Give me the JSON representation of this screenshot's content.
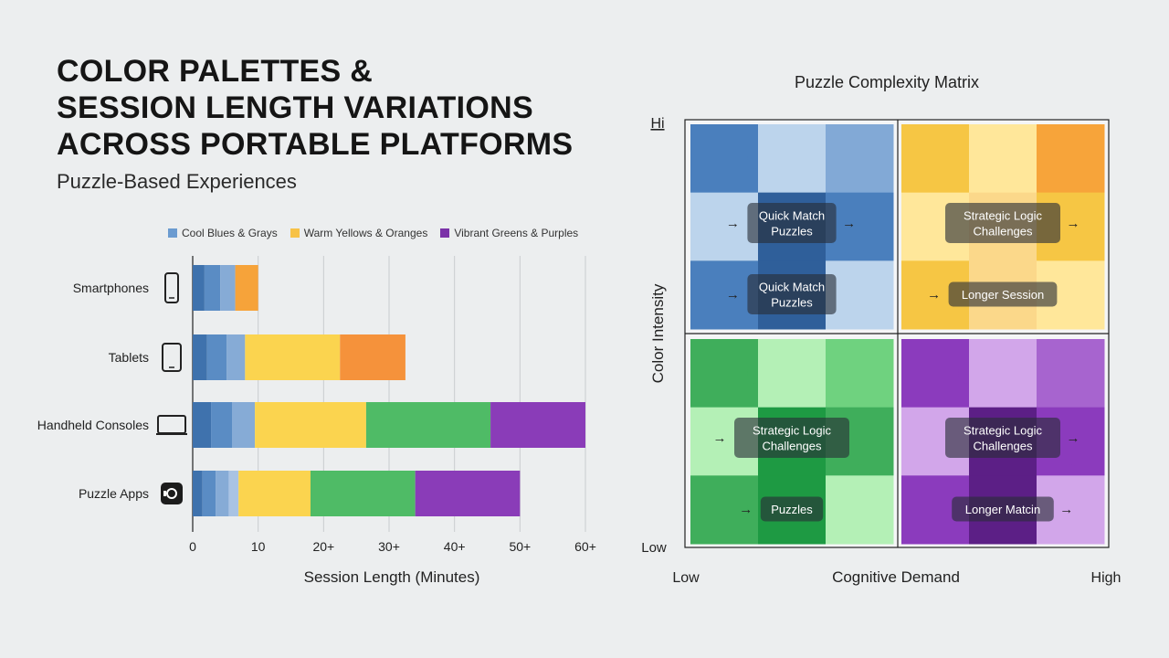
{
  "title_lines": [
    "COLOR PALETTES &",
    "SESSION LENGTH VARIATIONS",
    "ACROSS PORTABLE PLATFORMS"
  ],
  "subtitle": "Puzzle-Based Experiences",
  "legend": [
    {
      "label": "Cool Blues & Grays",
      "color": "#6b9bd0"
    },
    {
      "label": "Warm Yellows & Oranges",
      "color": "#f7c247"
    },
    {
      "label": "Vibrant Greens & Purples",
      "color": "#7b32a8"
    }
  ],
  "chart_data": [
    {
      "type": "bar",
      "orientation": "horizontal",
      "stacked": true,
      "xlabel": "Session Length (Minutes)",
      "xlim": [
        0,
        60
      ],
      "xticks": [
        "0",
        "10",
        "20+",
        "30+",
        "40+",
        "50+",
        "60+"
      ],
      "grid": true,
      "legend_position": "top",
      "categories": [
        {
          "label": "Smartphones",
          "icon": "smartphone-icon"
        },
        {
          "label": "Tablets",
          "icon": "tablet-icon"
        },
        {
          "label": "Handheld Consoles",
          "icon": "handheld-console-icon"
        },
        {
          "label": "Puzzle Apps",
          "icon": "puzzle-app-icon"
        }
      ],
      "series": [
        {
          "name": "Cool Blues & Grays",
          "values": [
            6.5,
            8,
            9.5,
            7
          ]
        },
        {
          "name": "Warm Yellows & Oranges",
          "values": [
            3.5,
            24.5,
            17,
            11
          ]
        },
        {
          "name": "Vibrant Greens & Purples",
          "values": [
            0,
            0,
            33.5,
            32
          ]
        }
      ],
      "segments": [
        [
          {
            "value": 1.8,
            "color": "#3f72ad"
          },
          {
            "value": 2.4,
            "color": "#5a8cc4"
          },
          {
            "value": 2.3,
            "color": "#86abd6"
          },
          {
            "value": 3.5,
            "color": "#f6a33a"
          }
        ],
        [
          {
            "value": 2.2,
            "color": "#3f72ad"
          },
          {
            "value": 3.0,
            "color": "#5a8cc4"
          },
          {
            "value": 2.8,
            "color": "#86abd6"
          },
          {
            "value": 14.5,
            "color": "#fbd44f"
          },
          {
            "value": 10.0,
            "color": "#f5923b"
          }
        ],
        [
          {
            "value": 2.8,
            "color": "#3f72ad"
          },
          {
            "value": 3.2,
            "color": "#5a8cc4"
          },
          {
            "value": 3.5,
            "color": "#86abd6"
          },
          {
            "value": 17.0,
            "color": "#fbd44f"
          },
          {
            "value": 19.0,
            "color": "#4fbb66"
          },
          {
            "value": 14.5,
            "color": "#8a3cb8"
          }
        ],
        [
          {
            "value": 1.5,
            "color": "#3f72ad"
          },
          {
            "value": 2.0,
            "color": "#5a8cc4"
          },
          {
            "value": 2.0,
            "color": "#86abd6"
          },
          {
            "value": 1.5,
            "color": "#a9c3e3"
          },
          {
            "value": 11.0,
            "color": "#fbd44f"
          },
          {
            "value": 16.0,
            "color": "#4fbb66"
          },
          {
            "value": 16.0,
            "color": "#8a3cb8"
          }
        ]
      ]
    },
    {
      "type": "matrix",
      "title": "Puzzle Complexity Matrix",
      "xlabel": "Cognitive Demand",
      "ylabel": "Color Intensity",
      "x_low": "Low",
      "x_high": "High",
      "y_low": "Low",
      "y_high": "Hi",
      "quadrants": [
        {
          "position": "top-left",
          "palette": "blue",
          "colors": [
            "#4a7fbd",
            "#bcd4ec",
            "#82a9d6",
            "#2f5f9a"
          ],
          "labels": [
            {
              "text": [
                "Quick Match",
                "Puzzles"
              ],
              "arrow_left": true,
              "arrow_right": true
            },
            {
              "text": [
                "Quick Match",
                "Puzzles"
              ],
              "arrow_left": true,
              "arrow_right": false
            }
          ]
        },
        {
          "position": "top-right",
          "palette": "orange",
          "colors": [
            "#f6c644",
            "#ffe79a",
            "#f7a43a",
            "#fbd88a"
          ],
          "labels": [
            {
              "text": [
                "Strategic Logic",
                "Challenges"
              ],
              "arrow_left": false,
              "arrow_right": true
            },
            {
              "text": [
                "Longer Session"
              ],
              "arrow_left": true,
              "arrow_right": false
            }
          ]
        },
        {
          "position": "bottom-left",
          "palette": "green",
          "colors": [
            "#3fae5b",
            "#b4f0b6",
            "#6fd27f",
            "#1e9a43"
          ],
          "labels": [
            {
              "text": [
                "Strategic Logic",
                "Challenges"
              ],
              "arrow_left": true,
              "arrow_right": false
            },
            {
              "text": [
                "Puzzles"
              ],
              "arrow_left": true,
              "arrow_right": false
            }
          ]
        },
        {
          "position": "bottom-right",
          "palette": "purple",
          "colors": [
            "#8b3bbd",
            "#d2a6ea",
            "#a764cf",
            "#5c1f86"
          ],
          "labels": [
            {
              "text": [
                "Strategic Logic",
                "Challenges"
              ],
              "arrow_left": false,
              "arrow_right": true
            },
            {
              "text": [
                "Longer Matcin"
              ],
              "arrow_left": false,
              "arrow_right": true
            }
          ]
        }
      ]
    }
  ]
}
